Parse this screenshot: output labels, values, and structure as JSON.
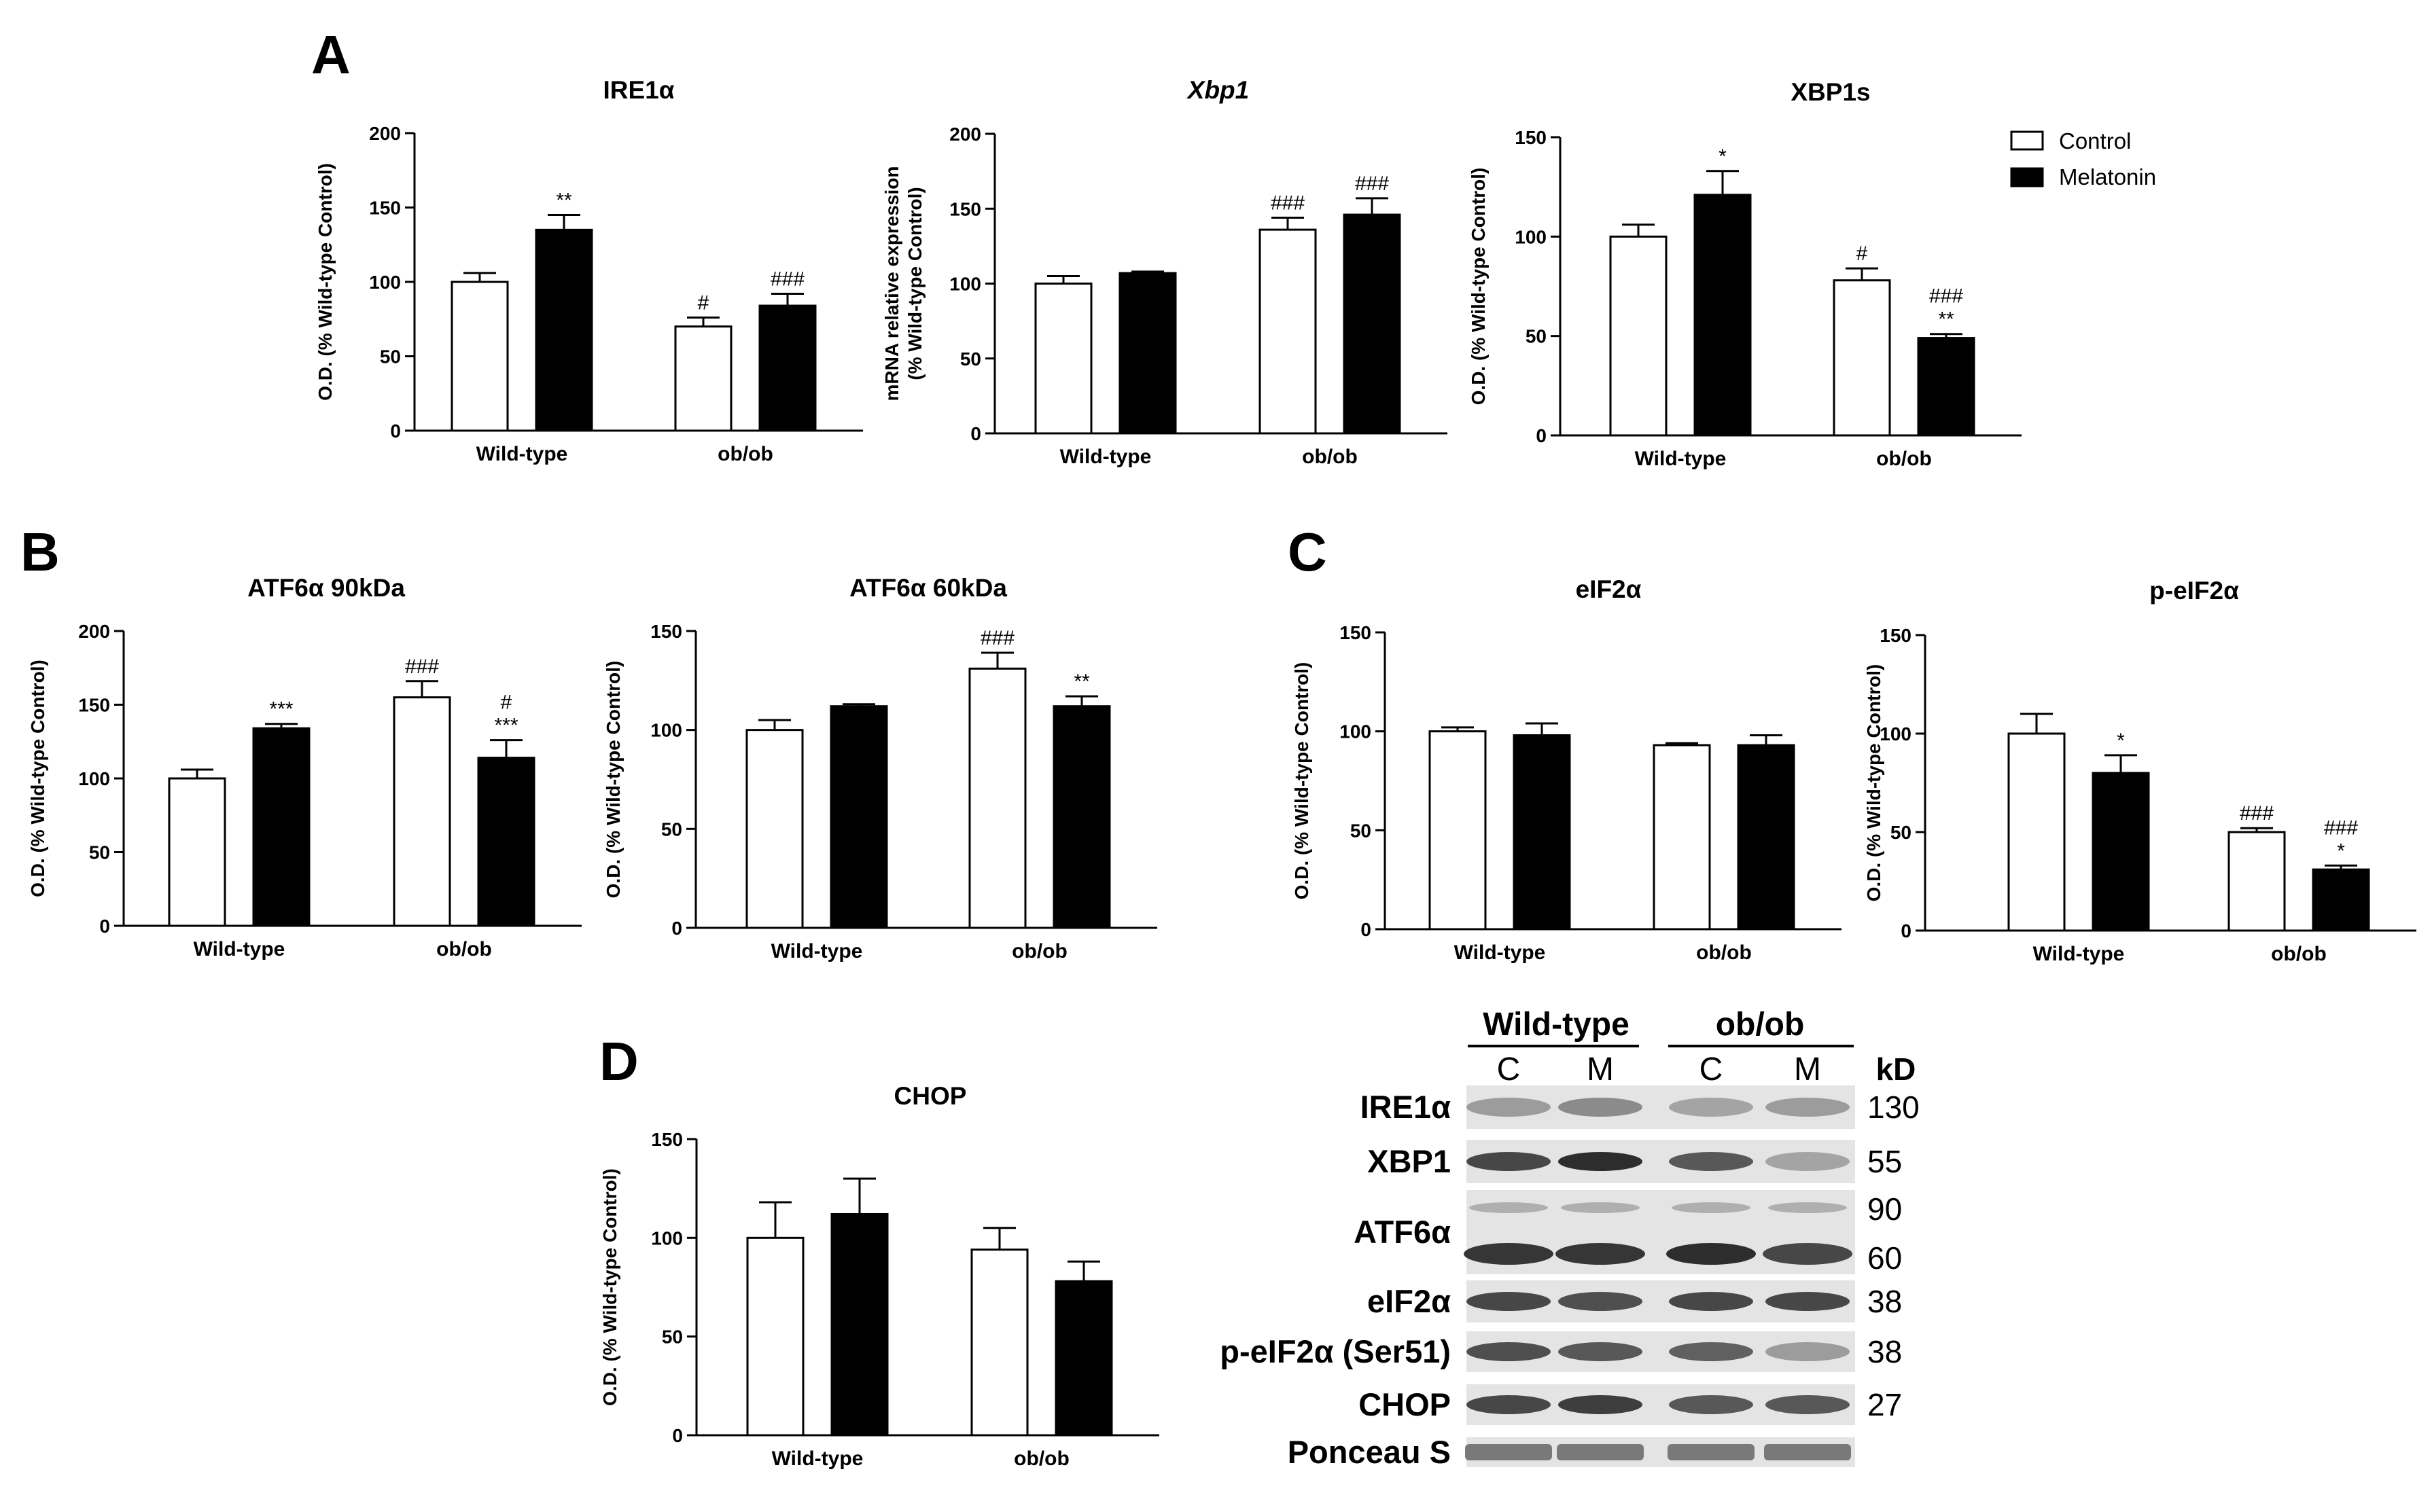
{
  "panels": [
    {
      "letter": "A"
    },
    {
      "letter": "B"
    },
    {
      "letter": "C"
    },
    {
      "letter": "D"
    }
  ],
  "legend": {
    "items": [
      {
        "label": "Control",
        "color": "#ffffff"
      },
      {
        "label": "Melatonin",
        "color": "#000000"
      }
    ]
  },
  "chart_data": [
    {
      "type": "bar",
      "panel": "A",
      "title": "IRE1α",
      "italic": false,
      "ylabel": [
        "O.D. (% Wild-type Control)"
      ],
      "ylim": [
        0,
        200
      ],
      "yticks": [
        0,
        50,
        100,
        150,
        200
      ],
      "categories": [
        "Wild-type",
        "ob/ob"
      ],
      "series": [
        {
          "name": "Control",
          "values": [
            100,
            70
          ],
          "errors": [
            6,
            6
          ],
          "annotations": [
            "",
            "#"
          ]
        },
        {
          "name": "Melatonin",
          "values": [
            135,
            84
          ],
          "errors": [
            10,
            8
          ],
          "annotations": [
            "**",
            "###"
          ]
        }
      ]
    },
    {
      "type": "bar",
      "panel": "A",
      "title": "Xbp1",
      "italic": true,
      "ylabel": [
        "mRNA relative expression",
        "(% Wild-type Control)"
      ],
      "ylim": [
        0,
        200
      ],
      "yticks": [
        0,
        50,
        100,
        150,
        200
      ],
      "categories": [
        "Wild-type",
        "ob/ob"
      ],
      "series": [
        {
          "name": "Control",
          "values": [
            100,
            136
          ],
          "errors": [
            5,
            8
          ],
          "annotations": [
            "",
            "###"
          ]
        },
        {
          "name": "Melatonin",
          "values": [
            107,
            146
          ],
          "errors": [
            1,
            11
          ],
          "annotations": [
            "",
            "###"
          ]
        }
      ]
    },
    {
      "type": "bar",
      "panel": "A",
      "title": "XBP1s",
      "italic": false,
      "ylabel": [
        "O.D. (% Wild-type Control)"
      ],
      "ylim": [
        0,
        150
      ],
      "yticks": [
        0,
        50,
        100,
        150
      ],
      "categories": [
        "Wild-type",
        "ob/ob"
      ],
      "series": [
        {
          "name": "Control",
          "values": [
            100,
            78
          ],
          "errors": [
            6,
            6
          ],
          "annotations": [
            "",
            "#"
          ]
        },
        {
          "name": "Melatonin",
          "values": [
            121,
            49
          ],
          "errors": [
            12,
            2
          ],
          "annotations": [
            "*",
            "###|**"
          ]
        }
      ]
    },
    {
      "type": "bar",
      "panel": "B",
      "title": "ATF6α 90kDa",
      "italic": false,
      "ylabel": [
        "O.D. (% Wild-type Control)"
      ],
      "ylim": [
        0,
        200
      ],
      "yticks": [
        0,
        50,
        100,
        150,
        200
      ],
      "categories": [
        "Wild-type",
        "ob/ob"
      ],
      "series": [
        {
          "name": "Control",
          "values": [
            100,
            155
          ],
          "errors": [
            6,
            11
          ],
          "annotations": [
            "",
            "###"
          ]
        },
        {
          "name": "Melatonin",
          "values": [
            134,
            114
          ],
          "errors": [
            3,
            12
          ],
          "annotations": [
            "***",
            "#|***"
          ]
        }
      ]
    },
    {
      "type": "bar",
      "panel": "B",
      "title": "ATF6α 60kDa",
      "italic": false,
      "ylabel": [
        "O.D. (% Wild-type Control)"
      ],
      "ylim": [
        0,
        150
      ],
      "yticks": [
        0,
        50,
        100,
        150
      ],
      "categories": [
        "Wild-type",
        "ob/ob"
      ],
      "series": [
        {
          "name": "Control",
          "values": [
            100,
            131
          ],
          "errors": [
            5,
            8
          ],
          "annotations": [
            "",
            "###"
          ]
        },
        {
          "name": "Melatonin",
          "values": [
            112,
            112
          ],
          "errors": [
            1,
            5
          ],
          "annotations": [
            "",
            "**"
          ]
        }
      ]
    },
    {
      "type": "bar",
      "panel": "C",
      "title": "eIF2α",
      "italic": false,
      "ylabel": [
        "O.D. (% Wild-type Control)"
      ],
      "ylim": [
        0,
        150
      ],
      "yticks": [
        0,
        50,
        100,
        150
      ],
      "categories": [
        "Wild-type",
        "ob/ob"
      ],
      "series": [
        {
          "name": "Control",
          "values": [
            100,
            93
          ],
          "errors": [
            2,
            1
          ],
          "annotations": [
            "",
            ""
          ]
        },
        {
          "name": "Melatonin",
          "values": [
            98,
            93
          ],
          "errors": [
            6,
            5
          ],
          "annotations": [
            "",
            ""
          ]
        }
      ]
    },
    {
      "type": "bar",
      "panel": "C",
      "title": "p-eIF2α",
      "italic": false,
      "ylabel": [
        "O.D. (% Wild-type Control)"
      ],
      "ylim": [
        0,
        150
      ],
      "yticks": [
        0,
        50,
        100,
        150
      ],
      "categories": [
        "Wild-type",
        "ob/ob"
      ],
      "series": [
        {
          "name": "Control",
          "values": [
            100,
            50
          ],
          "errors": [
            10,
            2
          ],
          "annotations": [
            "",
            "###"
          ]
        },
        {
          "name": "Melatonin",
          "values": [
            80,
            31
          ],
          "errors": [
            9,
            2
          ],
          "annotations": [
            "*",
            "###|*"
          ]
        }
      ]
    },
    {
      "type": "bar",
      "panel": "D",
      "title": "CHOP",
      "italic": false,
      "ylabel": [
        "O.D. (% Wild-type Control)"
      ],
      "ylim": [
        0,
        150
      ],
      "yticks": [
        0,
        50,
        100,
        150
      ],
      "categories": [
        "Wild-type",
        "ob/ob"
      ],
      "series": [
        {
          "name": "Control",
          "values": [
            100,
            94
          ],
          "errors": [
            18,
            11
          ],
          "annotations": [
            "",
            ""
          ]
        },
        {
          "name": "Melatonin",
          "values": [
            112,
            78
          ],
          "errors": [
            18,
            10
          ],
          "annotations": [
            "",
            ""
          ]
        }
      ]
    }
  ],
  "blot": {
    "groups": [
      "Wild-type",
      "ob/ob"
    ],
    "lanes": [
      "C",
      "M",
      "C",
      "M"
    ],
    "kd_header": "kD",
    "rows": [
      {
        "protein": "IRE1α",
        "kd": [
          "130"
        ],
        "intensity": [
          0.35,
          0.45,
          0.3,
          0.35
        ]
      },
      {
        "protein": "XBP1",
        "kd": [
          "55"
        ],
        "intensity": [
          0.85,
          1.0,
          0.75,
          0.3
        ]
      },
      {
        "protein": "ATF6α",
        "kd": [
          "90",
          "60"
        ],
        "intensity": [
          0.95,
          0.95,
          1.0,
          0.85
        ]
      },
      {
        "protein": "eIF2α",
        "kd": [
          "38"
        ],
        "intensity": [
          0.85,
          0.8,
          0.85,
          0.85
        ]
      },
      {
        "protein": "p-eIF2α (Ser51)",
        "kd": [
          "38"
        ],
        "intensity": [
          0.8,
          0.75,
          0.7,
          0.35
        ]
      },
      {
        "protein": "CHOP",
        "kd": [
          "27"
        ],
        "intensity": [
          0.85,
          0.9,
          0.75,
          0.75
        ]
      },
      {
        "protein": "Ponceau S",
        "kd": [],
        "intensity": [
          0.55,
          0.55,
          0.55,
          0.55
        ]
      }
    ]
  }
}
